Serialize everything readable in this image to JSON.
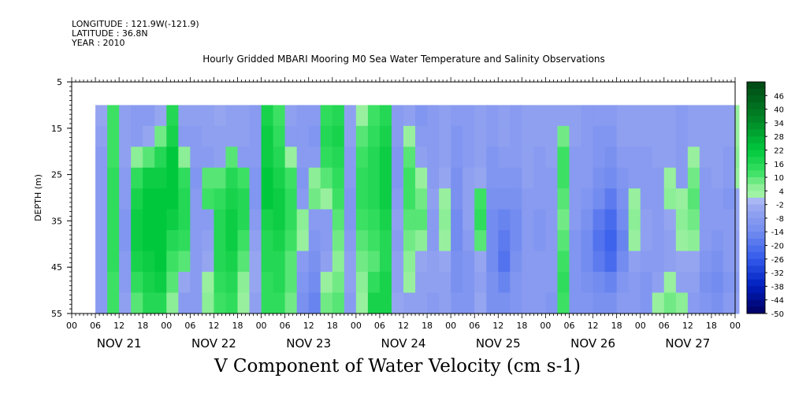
{
  "header": {
    "longitude": "LONGITUDE : 121.9W(-121.9)",
    "latitude": "LATITUDE : 36.8N",
    "year": "YEAR : 2010"
  },
  "chart_data": {
    "type": "heatmap",
    "title": "Hourly Gridded MBARI Mooring M0 Sea Water Temperature and Salinity Observations",
    "bottom_title": "V Component of Water Velocity (cm s-1)",
    "ylabel": "DEPTH (m)",
    "y_ticks": [
      5,
      15,
      25,
      35,
      45,
      55
    ],
    "ylim": [
      55,
      5
    ],
    "data_depth_range": [
      10,
      55
    ],
    "x_hour_ticks": [
      "00",
      "06",
      "12",
      "18",
      "00",
      "06",
      "12",
      "18",
      "00",
      "06",
      "12",
      "18",
      "00",
      "06",
      "12",
      "18",
      "00",
      "06",
      "12",
      "18",
      "00",
      "06",
      "12",
      "18",
      "00",
      "06",
      "12",
      "18",
      "00"
    ],
    "x_day_labels": [
      "NOV 21",
      "NOV 22",
      "NOV 23",
      "NOV 24",
      "NOV 25",
      "NOV 26",
      "NOV 27"
    ],
    "colorbar_labels": [
      "46",
      "40",
      "34",
      "28",
      "22",
      "16",
      "10",
      "4",
      "-2",
      "-8",
      "-14",
      "-20",
      "-26",
      "-32",
      "-38",
      "-44",
      "-50"
    ],
    "colorbar_range": [
      -50,
      52
    ],
    "data_start_hour": 6,
    "data_end_hour": 168,
    "time_columns": [
      {
        "hour": 6,
        "v": [
          -4,
          -6,
          -8,
          -8,
          -8,
          -8,
          -8,
          -8,
          -8,
          -8
        ]
      },
      {
        "hour": 9,
        "v": [
          12,
          12,
          12,
          14,
          14,
          14,
          14,
          14,
          12,
          12
        ]
      },
      {
        "hour": 12,
        "v": [
          -6,
          -6,
          -6,
          -8,
          -8,
          -10,
          -10,
          -8,
          -8,
          -6
        ]
      },
      {
        "hour": 15,
        "v": [
          -8,
          -8,
          6,
          14,
          18,
          20,
          20,
          18,
          14,
          10
        ]
      },
      {
        "hour": 18,
        "v": [
          -8,
          -4,
          10,
          20,
          22,
          22,
          22,
          20,
          18,
          16
        ]
      },
      {
        "hour": 21,
        "v": [
          -4,
          8,
          16,
          20,
          22,
          22,
          22,
          22,
          20,
          16
        ]
      },
      {
        "hour": 24,
        "v": [
          16,
          18,
          22,
          22,
          22,
          20,
          16,
          12,
          10,
          6
        ]
      },
      {
        "hour": 27,
        "v": [
          -6,
          -8,
          6,
          14,
          16,
          16,
          14,
          10,
          -4,
          -8
        ]
      },
      {
        "hour": 30,
        "v": [
          -6,
          -8,
          -8,
          -10,
          -8,
          -8,
          -8,
          -8,
          -8,
          -8
        ]
      },
      {
        "hour": 33,
        "v": [
          -6,
          -6,
          -8,
          10,
          12,
          -8,
          -6,
          -4,
          4,
          6
        ]
      },
      {
        "hour": 36,
        "v": [
          -4,
          -6,
          -6,
          10,
          14,
          16,
          16,
          16,
          14,
          12
        ]
      },
      {
        "hour": 39,
        "v": [
          -6,
          -6,
          10,
          16,
          18,
          20,
          20,
          18,
          16,
          14
        ]
      },
      {
        "hour": 42,
        "v": [
          -6,
          -6,
          -8,
          12,
          16,
          16,
          12,
          10,
          6,
          4
        ]
      },
      {
        "hour": 45,
        "v": [
          -8,
          -8,
          -8,
          -10,
          -10,
          -8,
          -6,
          -4,
          -4,
          -6
        ]
      },
      {
        "hour": 48,
        "v": [
          18,
          20,
          20,
          22,
          22,
          18,
          16,
          16,
          14,
          14
        ]
      },
      {
        "hour": 51,
        "v": [
          12,
          14,
          16,
          18,
          20,
          20,
          18,
          16,
          16,
          14
        ]
      },
      {
        "hour": 54,
        "v": [
          -6,
          -8,
          4,
          12,
          14,
          14,
          12,
          10,
          10,
          8
        ]
      },
      {
        "hour": 57,
        "v": [
          -8,
          -8,
          -8,
          -10,
          -8,
          6,
          4,
          -8,
          -10,
          -12
        ]
      },
      {
        "hour": 60,
        "v": [
          -8,
          -10,
          -8,
          6,
          8,
          -8,
          -10,
          -12,
          -14,
          -16
        ]
      },
      {
        "hour": 63,
        "v": [
          14,
          16,
          14,
          10,
          4,
          -8,
          -8,
          -6,
          4,
          8
        ]
      },
      {
        "hour": 66,
        "v": [
          16,
          18,
          16,
          14,
          12,
          10,
          8,
          6,
          8,
          10
        ]
      },
      {
        "hour": 69,
        "v": [
          -6,
          -6,
          -8,
          -8,
          -10,
          -10,
          -8,
          -6,
          -6,
          -8
        ]
      },
      {
        "hour": 72,
        "v": [
          4,
          10,
          12,
          14,
          14,
          12,
          10,
          8,
          6,
          4
        ]
      },
      {
        "hour": 75,
        "v": [
          12,
          14,
          16,
          16,
          16,
          14,
          12,
          10,
          14,
          18
        ]
      },
      {
        "hour": 78,
        "v": [
          16,
          18,
          20,
          20,
          20,
          18,
          16,
          16,
          18,
          18
        ]
      },
      {
        "hour": 81,
        "v": [
          -8,
          -8,
          -10,
          -10,
          -8,
          -6,
          -8,
          -6,
          -6,
          -4
        ]
      },
      {
        "hour": 84,
        "v": [
          -6,
          4,
          10,
          12,
          12,
          10,
          8,
          6,
          4,
          -6
        ]
      },
      {
        "hour": 87,
        "v": [
          -10,
          -8,
          -6,
          4,
          8,
          10,
          6,
          -4,
          -6,
          -6
        ]
      },
      {
        "hour": 90,
        "v": [
          -8,
          -8,
          -8,
          -8,
          -6,
          -8,
          -8,
          -6,
          -6,
          -8
        ]
      },
      {
        "hour": 93,
        "v": [
          -6,
          -6,
          -6,
          -4,
          4,
          6,
          4,
          -4,
          -6,
          -6
        ]
      },
      {
        "hour": 96,
        "v": [
          -8,
          -10,
          -10,
          -12,
          -12,
          -14,
          -14,
          -12,
          -12,
          -10
        ]
      },
      {
        "hour": 99,
        "v": [
          -8,
          -8,
          -8,
          -6,
          -6,
          -6,
          -8,
          -10,
          -10,
          -10
        ]
      },
      {
        "hour": 102,
        "v": [
          -6,
          -6,
          -6,
          -4,
          12,
          14,
          10,
          -4,
          -6,
          -4
        ]
      },
      {
        "hour": 105,
        "v": [
          -8,
          -8,
          -10,
          -10,
          -12,
          -14,
          -14,
          -14,
          -12,
          -12
        ]
      },
      {
        "hour": 108,
        "v": [
          -6,
          -6,
          -8,
          -10,
          -12,
          -16,
          -18,
          -20,
          -16,
          -12
        ]
      },
      {
        "hour": 111,
        "v": [
          -8,
          -8,
          -8,
          -10,
          -12,
          -14,
          -14,
          -12,
          -10,
          -10
        ]
      },
      {
        "hour": 114,
        "v": [
          -6,
          -6,
          -6,
          -6,
          -8,
          -8,
          -8,
          -8,
          -8,
          -8
        ]
      },
      {
        "hour": 117,
        "v": [
          -6,
          -6,
          -8,
          -8,
          -8,
          -10,
          -10,
          -8,
          -8,
          -8
        ]
      },
      {
        "hour": 120,
        "v": [
          -6,
          -6,
          -6,
          -8,
          -8,
          -8,
          -8,
          -8,
          -8,
          -10
        ]
      },
      {
        "hour": 123,
        "v": [
          -6,
          8,
          12,
          12,
          10,
          8,
          10,
          12,
          14,
          12
        ]
      },
      {
        "hour": 126,
        "v": [
          -6,
          -6,
          -8,
          -8,
          -8,
          -8,
          -10,
          -10,
          -10,
          -10
        ]
      },
      {
        "hour": 129,
        "v": [
          -8,
          -8,
          -8,
          -8,
          -10,
          -12,
          -14,
          -14,
          -12,
          -10
        ]
      },
      {
        "hour": 132,
        "v": [
          -8,
          -10,
          -10,
          -12,
          -14,
          -18,
          -20,
          -18,
          -14,
          -12
        ]
      },
      {
        "hour": 135,
        "v": [
          -8,
          -10,
          -12,
          -14,
          -18,
          -22,
          -24,
          -22,
          -16,
          -12
        ]
      },
      {
        "hour": 138,
        "v": [
          -6,
          -6,
          -8,
          -10,
          -12,
          -14,
          -16,
          -14,
          -10,
          -8
        ]
      },
      {
        "hour": 141,
        "v": [
          -6,
          -6,
          -8,
          -8,
          4,
          6,
          4,
          -6,
          -8,
          -8
        ]
      },
      {
        "hour": 144,
        "v": [
          -6,
          -6,
          -8,
          -8,
          -8,
          -6,
          -6,
          -8,
          -10,
          -10
        ]
      },
      {
        "hour": 147,
        "v": [
          -6,
          -6,
          -6,
          -8,
          -8,
          -8,
          -8,
          -8,
          -6,
          4
        ]
      },
      {
        "hour": 150,
        "v": [
          -6,
          -6,
          -6,
          4,
          6,
          -4,
          -6,
          -6,
          4,
          8
        ]
      },
      {
        "hour": 153,
        "v": [
          -8,
          -8,
          -8,
          -8,
          4,
          6,
          4,
          -4,
          -6,
          6
        ]
      },
      {
        "hour": 156,
        "v": [
          -6,
          -6,
          4,
          8,
          10,
          8,
          6,
          -4,
          -6,
          -8
        ]
      },
      {
        "hour": 159,
        "v": [
          -6,
          -6,
          -6,
          -8,
          -8,
          -8,
          -8,
          -10,
          -12,
          -10
        ]
      },
      {
        "hour": 162,
        "v": [
          -6,
          -6,
          -6,
          -6,
          -8,
          -8,
          -10,
          -12,
          -14,
          -12
        ]
      },
      {
        "hour": 165,
        "v": [
          -6,
          -6,
          -8,
          -8,
          -10,
          -8,
          -8,
          -8,
          -10,
          -8
        ]
      },
      {
        "hour": 168,
        "v": [
          4,
          4,
          6,
          4,
          -4,
          -4,
          -6,
          -6,
          -8,
          -6
        ]
      }
    ]
  }
}
